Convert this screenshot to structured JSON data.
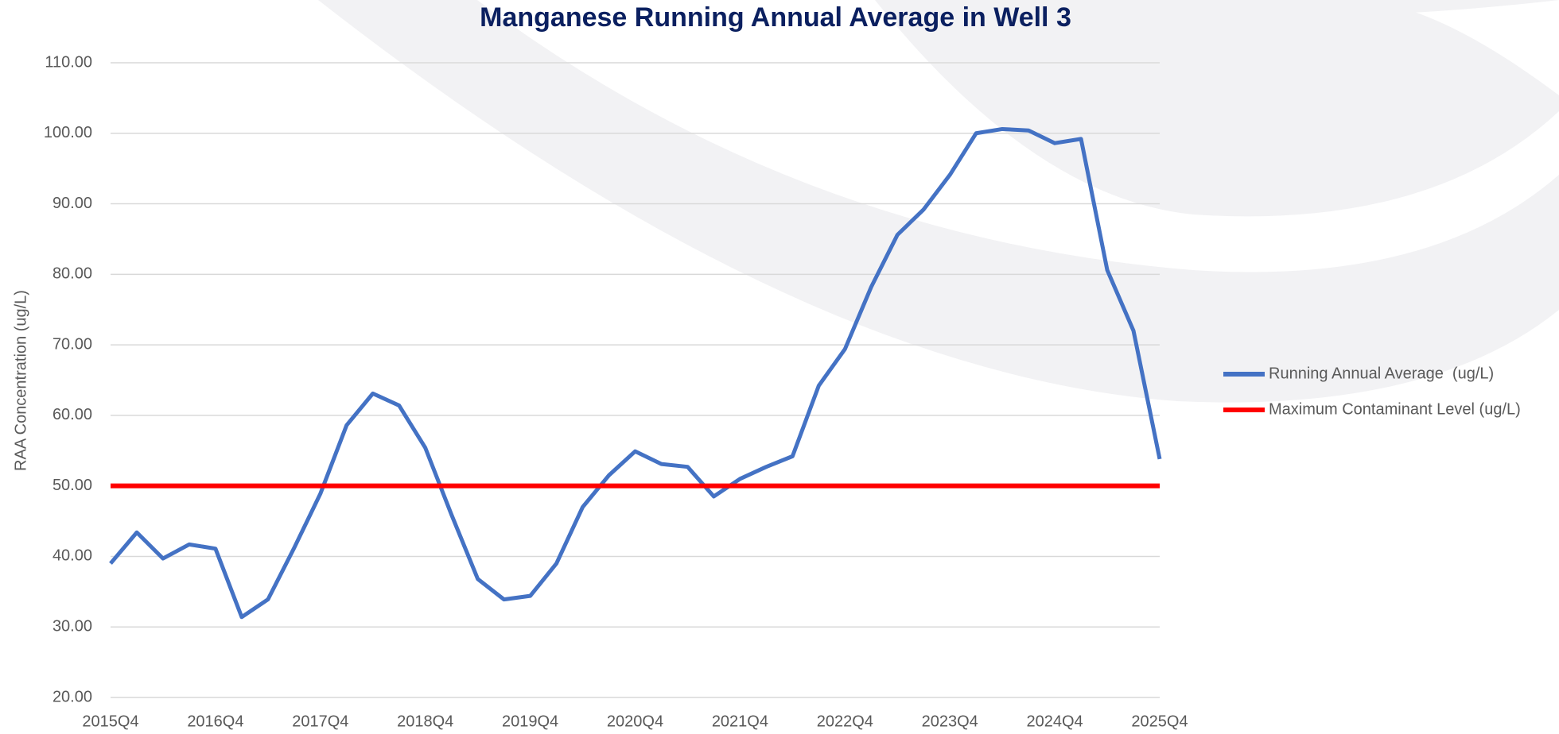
{
  "chart_data": {
    "type": "line",
    "title": "Manganese Running Annual Average in Well 3",
    "y_label": "RAA Concentration (ug/L)",
    "categories": [
      "2015Q4",
      null,
      null,
      null,
      "2016Q4",
      null,
      null,
      null,
      "2017Q4",
      null,
      null,
      null,
      "2018Q4",
      null,
      null,
      null,
      "2019Q4",
      null,
      null,
      null,
      "2020Q4",
      null,
      null,
      null,
      "2021Q4",
      null,
      null,
      null,
      "2022Q4",
      null,
      null,
      null,
      "2023Q4",
      null,
      null,
      null,
      "2024Q4",
      null,
      null,
      null,
      "2025Q4"
    ],
    "series": [
      {
        "name": "Running Annual Average  (ug/L)",
        "color": "#4472c4",
        "values": [
          39.0,
          43.4,
          39.7,
          41.7,
          41.1,
          31.4,
          33.9,
          41.2,
          48.9,
          58.6,
          63.1,
          61.4,
          55.4,
          45.9,
          36.8,
          33.9,
          34.4,
          39.0,
          47.0,
          51.5,
          54.9,
          53.1,
          52.7,
          48.5,
          51.0,
          52.7,
          54.2,
          64.2,
          69.4,
          78.2,
          85.6,
          89.2,
          94.1,
          100.0,
          100.6,
          100.4,
          98.6,
          99.2,
          80.6,
          72.0,
          53.8
        ]
      },
      {
        "name": "Maximum Contaminant Level (ug/L)",
        "color": "#ff0000",
        "values": [
          50,
          50,
          50,
          50,
          50,
          50,
          50,
          50,
          50,
          50,
          50,
          50,
          50,
          50,
          50,
          50,
          50,
          50,
          50,
          50,
          50,
          50,
          50,
          50,
          50,
          50,
          50,
          50,
          50,
          50,
          50,
          50,
          50,
          50,
          50,
          50,
          50,
          50,
          50,
          50,
          50
        ]
      }
    ],
    "ylim": [
      20,
      110
    ],
    "yticks": [
      {
        "value": 20,
        "label": "20.00"
      },
      {
        "value": 30,
        "label": "30.00"
      },
      {
        "value": 40,
        "label": "40.00"
      },
      {
        "value": 50,
        "label": "50.00"
      },
      {
        "value": 60,
        "label": "60.00"
      },
      {
        "value": 70,
        "label": "70.00"
      },
      {
        "value": 80,
        "label": "80.00"
      },
      {
        "value": 90,
        "label": "90.00"
      },
      {
        "value": 100,
        "label": "100.00"
      },
      {
        "value": 110,
        "label": "110.00"
      }
    ],
    "grid": true,
    "legend": "right"
  }
}
